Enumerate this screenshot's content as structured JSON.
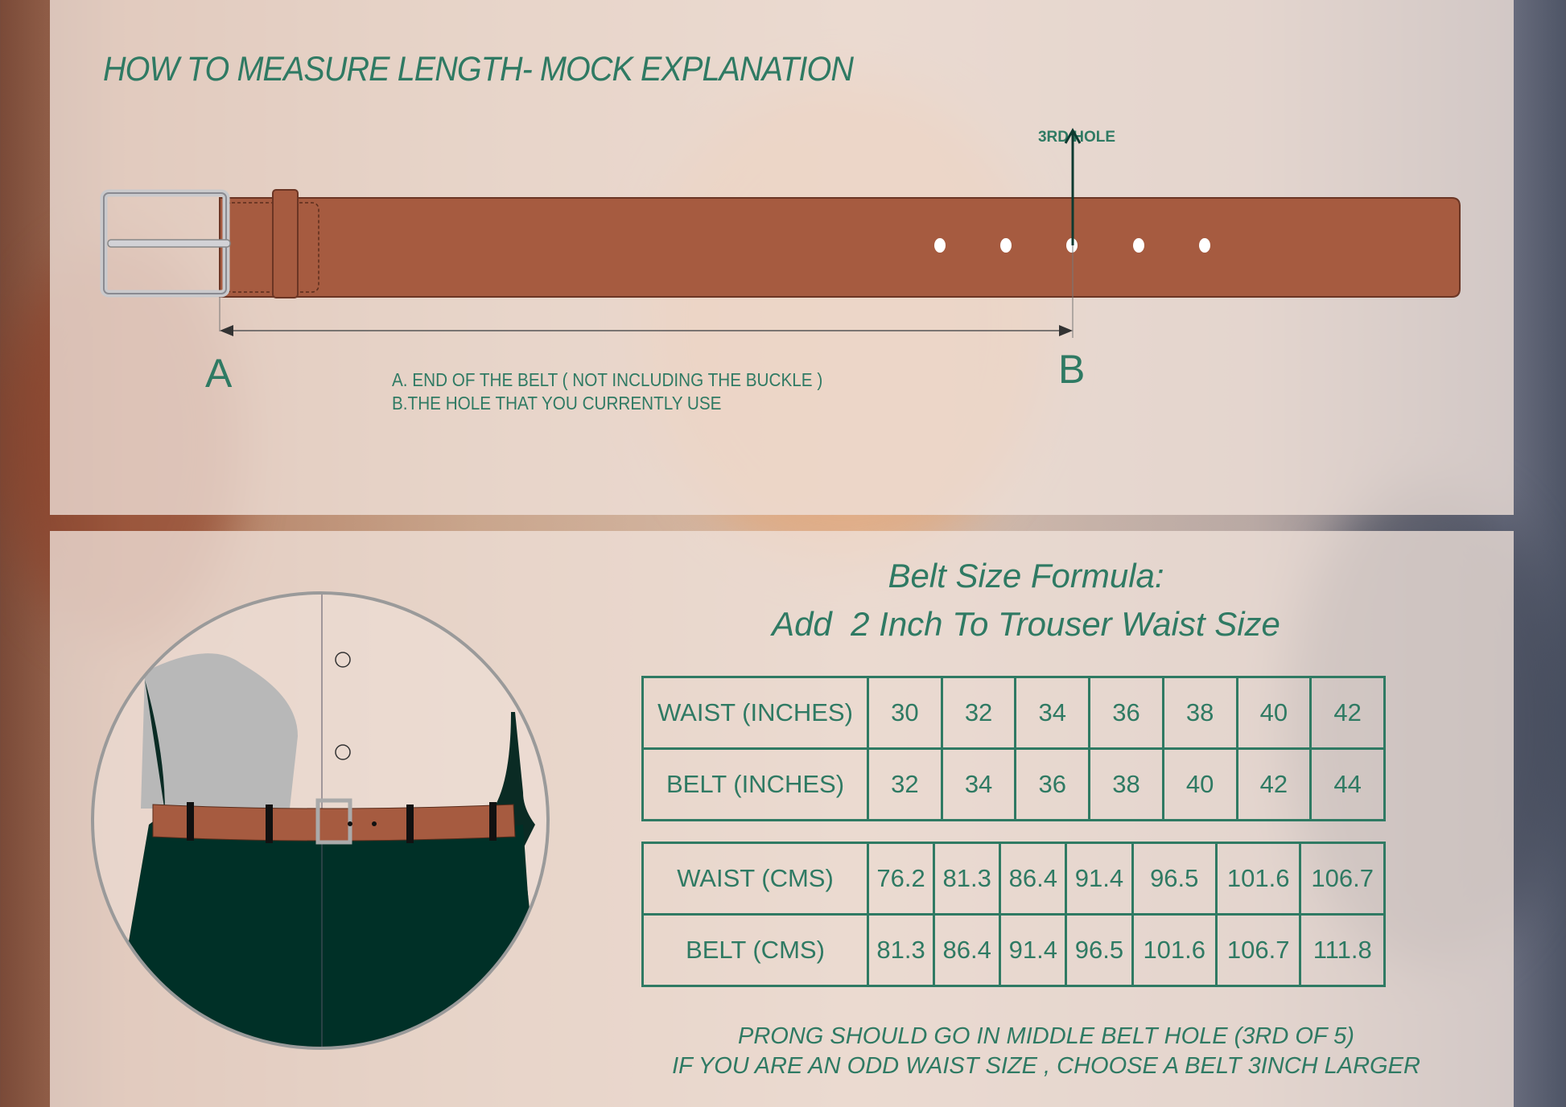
{
  "colors": {
    "accent": "#2f7a63",
    "belt": "#a65b40",
    "trouser": "#003027"
  },
  "measure": {
    "title": "HOW TO MEASURE LENGTH- MOCK EXPLANATION",
    "hole_label": "3RD HOLE",
    "point_a": "A",
    "point_b": "B",
    "note_a": "A. END OF THE BELT ( NOT INCLUDING THE BUCKLE )",
    "note_b": "B.THE HOLE THAT YOU CURRENTLY USE"
  },
  "formula": {
    "line1": "Belt Size Formula:",
    "line2": "Add  2 Inch To Trouser Waist Size"
  },
  "inches_table": {
    "rows": [
      {
        "label": "WAIST (INCHES)",
        "values": [
          "30",
          "32",
          "34",
          "36",
          "38",
          "40",
          "42"
        ]
      },
      {
        "label": "BELT (INCHES)",
        "values": [
          "32",
          "34",
          "36",
          "38",
          "40",
          "42",
          "44"
        ]
      }
    ]
  },
  "cms_table": {
    "rows": [
      {
        "label": "WAIST (CMS)",
        "values": [
          "76.2",
          "81.3",
          "86.4",
          "91.4",
          "96.5",
          "101.6",
          "106.7"
        ]
      },
      {
        "label": "BELT (CMS)",
        "values": [
          "81.3",
          "86.4",
          "91.4",
          "96.5",
          "101.6",
          "106.7",
          "111.8"
        ]
      }
    ]
  },
  "footer": {
    "line1": "PRONG SHOULD GO IN MIDDLE BELT HOLE (3RD OF 5)",
    "line2": "IF YOU ARE AN ODD WAIST SIZE , CHOOSE A BELT 3INCH LARGER"
  }
}
